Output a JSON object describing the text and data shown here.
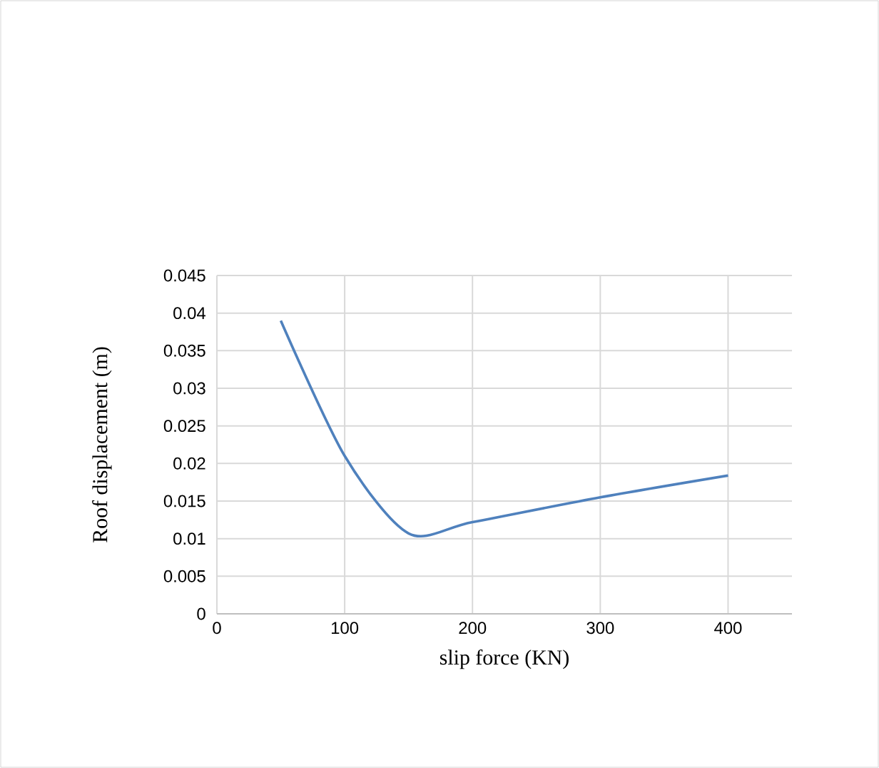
{
  "chart_data": {
    "type": "line",
    "xlabel": "slip force (KN)",
    "ylabel": "Roof displacement (m)",
    "x": [
      50,
      100,
      150,
      200,
      300,
      400
    ],
    "series": [
      {
        "color": "#4f81bd",
        "values": [
          0.039,
          0.021,
          0.0107,
          0.0122,
          0.0155,
          0.0184
        ]
      }
    ],
    "xlim": [
      0,
      450
    ],
    "ylim": [
      0,
      0.045
    ],
    "xticks": [
      0,
      100,
      200,
      300,
      400
    ],
    "yticks": [
      0,
      0.005,
      0.01,
      0.015,
      0.02,
      0.025,
      0.03,
      0.035,
      0.04,
      0.045
    ],
    "grid": true,
    "marker": "none",
    "line_style": "solid"
  }
}
